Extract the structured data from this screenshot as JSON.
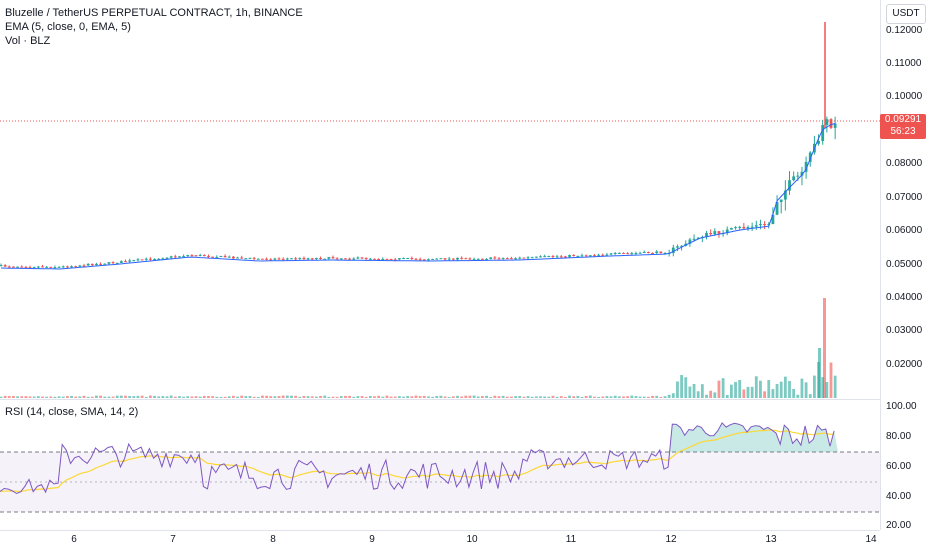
{
  "header": {
    "symbol_line": "Bluzelle / TetherUS PERPETUAL CONTRACT, 1h, BINANCE",
    "ema_line": "EMA (5, close, 0, EMA, 5)",
    "volume_line": "Vol · BLZ",
    "rsi_line": "RSI (14, close, SMA, 14, 2)"
  },
  "currency_button": "USDT",
  "price_axis": [
    "0.12000",
    "0.11000",
    "0.10000",
    "0.08000",
    "0.07000",
    "0.06000",
    "0.05000"
  ],
  "volume_axis": [
    "0.04000",
    "0.03000",
    "0.02000"
  ],
  "rsi_axis": [
    "100.00",
    "80.00",
    "60.00",
    "40.00",
    "20.00"
  ],
  "time_axis": [
    "6",
    "7",
    "8",
    "9",
    "10",
    "11",
    "12",
    "13",
    "14"
  ],
  "last_price": {
    "price": "0.09291",
    "countdown": "56:23"
  },
  "colors": {
    "up": "#26a69a",
    "down": "#ef5350",
    "ema": "#2962ff",
    "rsi": "#7e57c2",
    "rsi_ma": "#fdd835"
  }
}
